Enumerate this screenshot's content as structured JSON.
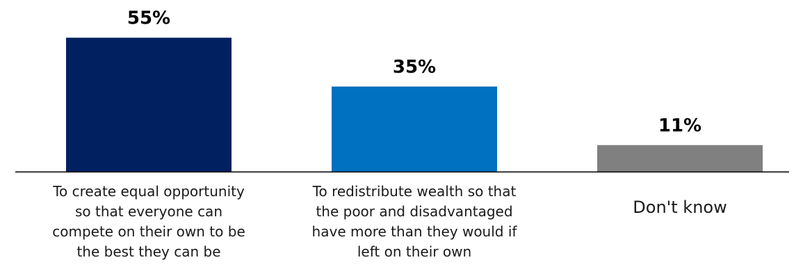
{
  "chart_data": {
    "type": "bar",
    "categories": [
      "To create equal opportunity so that everyone can compete on their own to be the best they can be",
      "To redistribute wealth so that the poor and disadvantaged have more than they would if left on their own",
      "Don't know"
    ],
    "values": [
      55,
      35,
      11
    ],
    "value_labels": [
      "55%",
      "35%",
      "11%"
    ],
    "colors": [
      "#002060",
      "#0070C0",
      "#808080"
    ],
    "ylim": [
      0,
      60
    ],
    "title": "",
    "xlabel": "",
    "ylabel": "",
    "grid": false,
    "legend": "none"
  }
}
